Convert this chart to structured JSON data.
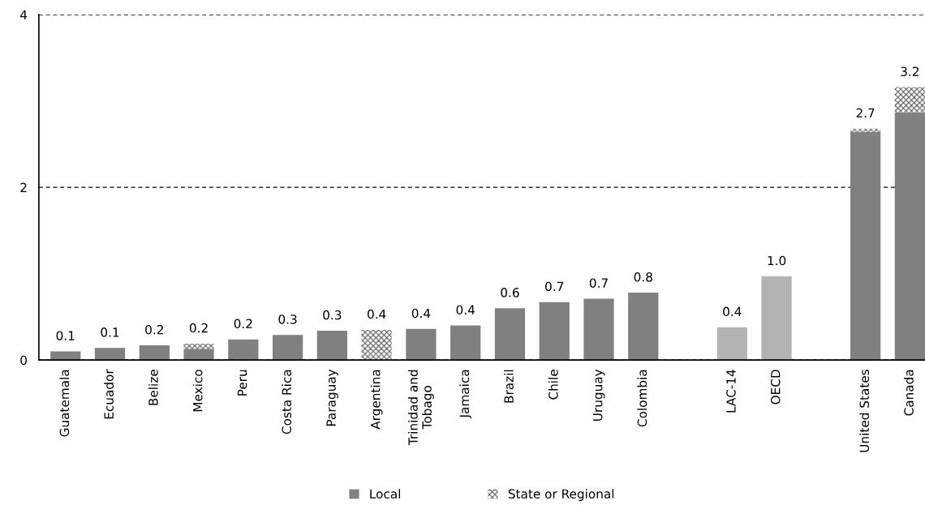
{
  "chart_data": {
    "type": "bar",
    "stacked": true,
    "categories": [
      "Guatemala",
      "Ecuador",
      "Belize",
      "Mexico",
      "Peru",
      "Costa Rica",
      "Paraguay",
      "Argentina",
      "Trinidad and\nTobago",
      "Jamaica",
      "Brazil",
      "Chile",
      "Uruguay",
      "Colombia",
      null,
      "LAC-14",
      "OECD",
      null,
      "United States",
      "Canada"
    ],
    "series": [
      {
        "name": "Local",
        "color": "#808080",
        "colors": [
          "#808080",
          "#808080",
          "#808080",
          "#808080",
          "#808080",
          "#808080",
          "#808080",
          "#808080",
          "#808080",
          "#808080",
          "#808080",
          "#808080",
          "#808080",
          "#808080",
          "#808080",
          "#b3b3b3",
          "#b3b3b3",
          "#808080",
          "#808080",
          "#808080"
        ],
        "values": [
          0.1,
          0.14,
          0.17,
          0.13,
          0.24,
          0.29,
          0.34,
          0,
          0.36,
          0.4,
          0.6,
          0.67,
          0.71,
          0.78,
          null,
          0.38,
          0.97,
          null,
          2.64,
          2.87
        ]
      },
      {
        "name": "State or Regional",
        "color": "#595959",
        "values": [
          0,
          0,
          0,
          0.06,
          0,
          0,
          0,
          0.35,
          0,
          0,
          0,
          0,
          0,
          0,
          null,
          0,
          0,
          null,
          0.04,
          0.29
        ]
      }
    ],
    "totals": [
      "0.1",
      "0.1",
      "0.2",
      "0.2",
      "0.2",
      "0.3",
      "0.3",
      "0.4",
      "0.4",
      "0.4",
      "0.6",
      "0.7",
      "0.7",
      "0.8",
      null,
      "0.4",
      "1.0",
      null,
      "2.7",
      "3.2"
    ],
    "ylim": [
      0,
      4
    ],
    "yticks": [
      0,
      2,
      4
    ],
    "grid": "y",
    "legend": "bottom"
  }
}
